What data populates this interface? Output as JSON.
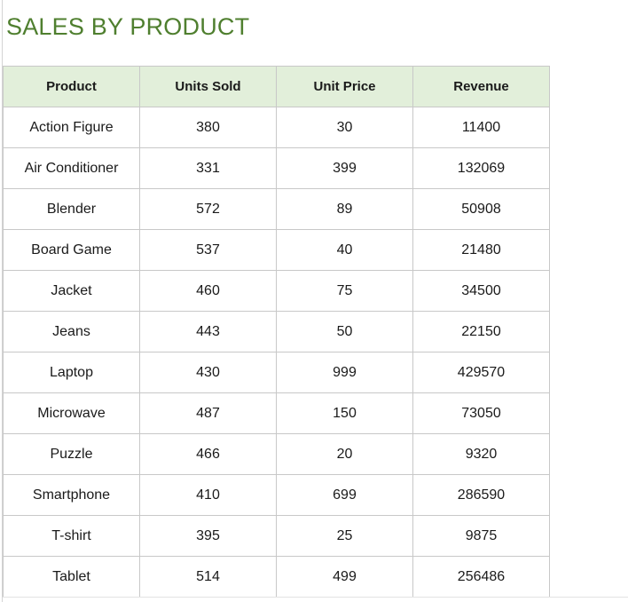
{
  "title": "SALES BY PRODUCT",
  "colors": {
    "title": "#4f7f2f",
    "header_fill": "#e2efda",
    "grid_line": "#c8c8c8"
  },
  "table": {
    "headers": [
      "Product",
      "Units Sold",
      "Unit Price",
      "Revenue"
    ],
    "rows": [
      [
        "Action Figure",
        "380",
        "30",
        "11400"
      ],
      [
        "Air Conditioner",
        "331",
        "399",
        "132069"
      ],
      [
        "Blender",
        "572",
        "89",
        "50908"
      ],
      [
        "Board Game",
        "537",
        "40",
        "21480"
      ],
      [
        "Jacket",
        "460",
        "75",
        "34500"
      ],
      [
        "Jeans",
        "443",
        "50",
        "22150"
      ],
      [
        "Laptop",
        "430",
        "999",
        "429570"
      ],
      [
        "Microwave",
        "487",
        "150",
        "73050"
      ],
      [
        "Puzzle",
        "466",
        "20",
        "9320"
      ],
      [
        "Smartphone",
        "410",
        "699",
        "286590"
      ],
      [
        "T-shirt",
        "395",
        "25",
        "9875"
      ],
      [
        "Tablet",
        "514",
        "499",
        "256486"
      ]
    ]
  }
}
